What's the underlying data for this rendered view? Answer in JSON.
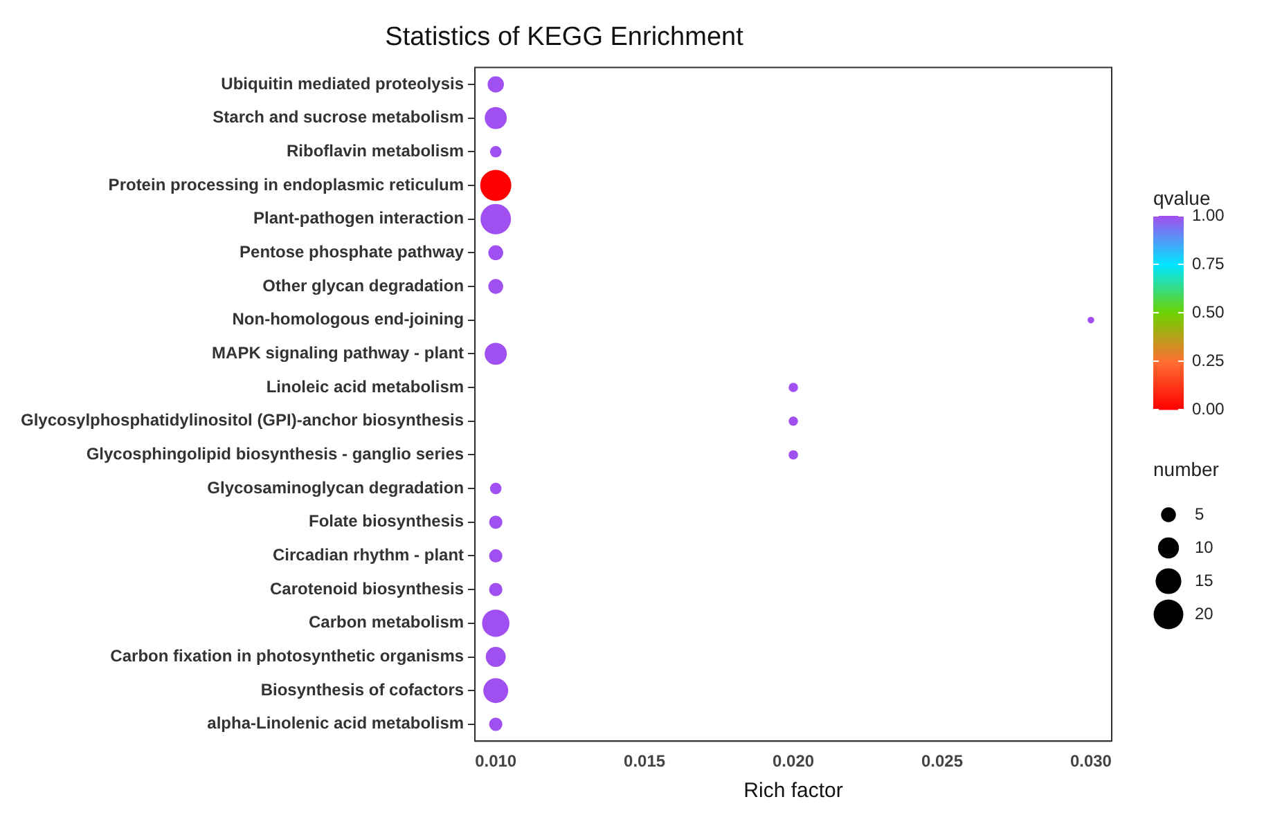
{
  "chart_data": {
    "type": "bubble",
    "title": "Statistics of KEGG Enrichment",
    "xlabel": "Rich factor",
    "legend_title": "number",
    "clabel": "qvalue",
    "categories": [
      "Ubiquitin mediated proteolysis",
      "Starch and sucrose metabolism",
      "Riboflavin metabolism",
      "Protein processing in endoplasmic reticulum",
      "Plant-pathogen interaction",
      "Pentose phosphate pathway",
      "Other glycan degradation",
      "Non-homologous end-joining",
      "MAPK signaling pathway - plant",
      "Linoleic acid metabolism",
      "Glycosylphosphatidylinositol (GPI)-anchor biosynthesis",
      "Glycosphingolipid biosynthesis - ganglio series",
      "Glycosaminoglycan degradation",
      "Folate biosynthesis",
      "Circadian rhythm - plant",
      "Carotenoid biosynthesis",
      "Carbon metabolism",
      "Carbon fixation in photosynthetic organisms",
      "Biosynthesis of cofactors",
      "alpha-Linolenic acid metabolism"
    ],
    "orientation": "horizontal",
    "values": [
      0.01,
      0.01,
      0.01,
      0.01,
      0.01,
      0.01,
      0.01,
      0.03,
      0.01,
      0.02,
      0.02,
      0.02,
      0.01,
      0.01,
      0.01,
      0.01,
      0.01,
      0.01,
      0.01,
      0.01
    ],
    "sizes": [
      6,
      11,
      3,
      22,
      21,
      5,
      5,
      1,
      11,
      2,
      2,
      2,
      3,
      4,
      4,
      4,
      17,
      9,
      14,
      4
    ],
    "cvalues": [
      1,
      1,
      1,
      0,
      1,
      1,
      1,
      1,
      1,
      1,
      1,
      1,
      1,
      1,
      1,
      1,
      1,
      1,
      1,
      1
    ],
    "size_legend": [
      {
        "value": 5,
        "label": "5"
      },
      {
        "value": 10,
        "label": "10"
      },
      {
        "value": 15,
        "label": "15"
      },
      {
        "value": 20,
        "label": "20"
      }
    ],
    "clim": [
      0,
      1
    ],
    "cticks": [
      {
        "value": 0,
        "label": "0.00"
      },
      {
        "value": 0.25,
        "label": "0.25"
      },
      {
        "value": 0.5,
        "label": "0.50"
      },
      {
        "value": 0.75,
        "label": "0.75"
      },
      {
        "value": 1,
        "label": "1.00"
      }
    ],
    "xlim": [
      0.0093,
      0.0307
    ],
    "xticks": [
      {
        "value": 0.01,
        "label": "0.010"
      },
      {
        "value": 0.015,
        "label": "0.015"
      },
      {
        "value": 0.02,
        "label": "0.020"
      },
      {
        "value": 0.025,
        "label": "0.025"
      },
      {
        "value": 0.03,
        "label": "0.030"
      }
    ],
    "grid": false
  }
}
